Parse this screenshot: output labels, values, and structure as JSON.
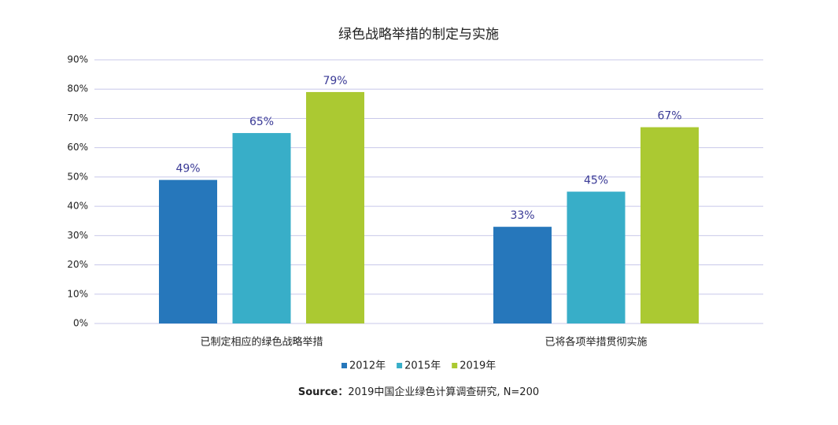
{
  "chart_data": {
    "type": "bar",
    "title": "绿色战略举措的制定与实施",
    "categories": [
      "已制定相应的绿色战略举措",
      "已将各项举措贯彻实施"
    ],
    "series": [
      {
        "name": "2012年",
        "color": "#2677bb",
        "values": [
          49,
          33
        ],
        "value_labels": [
          "49%",
          "33%"
        ]
      },
      {
        "name": "2015年",
        "color": "#38aec8",
        "values": [
          65,
          45
        ],
        "value_labels": [
          "65%",
          "45%"
        ]
      },
      {
        "name": "2019年",
        "color": "#abc932",
        "values": [
          79,
          67
        ],
        "value_labels": [
          "79%",
          "67%"
        ]
      }
    ],
    "ylim": [
      0,
      90
    ],
    "yticks": [
      {
        "value": 0,
        "label": "0%"
      },
      {
        "value": 10,
        "label": "10%"
      },
      {
        "value": 20,
        "label": "20%"
      },
      {
        "value": 30,
        "label": "30%"
      },
      {
        "value": 40,
        "label": "40%"
      },
      {
        "value": 50,
        "label": "50%"
      },
      {
        "value": 60,
        "label": "60%"
      },
      {
        "value": 70,
        "label": "70%"
      },
      {
        "value": 80,
        "label": "80%"
      },
      {
        "value": 90,
        "label": "90%"
      }
    ],
    "grid": true,
    "legend": "bottom",
    "source": {
      "label": "Source：",
      "text": "2019中国企业绿色计算调查研究, N=200"
    }
  }
}
